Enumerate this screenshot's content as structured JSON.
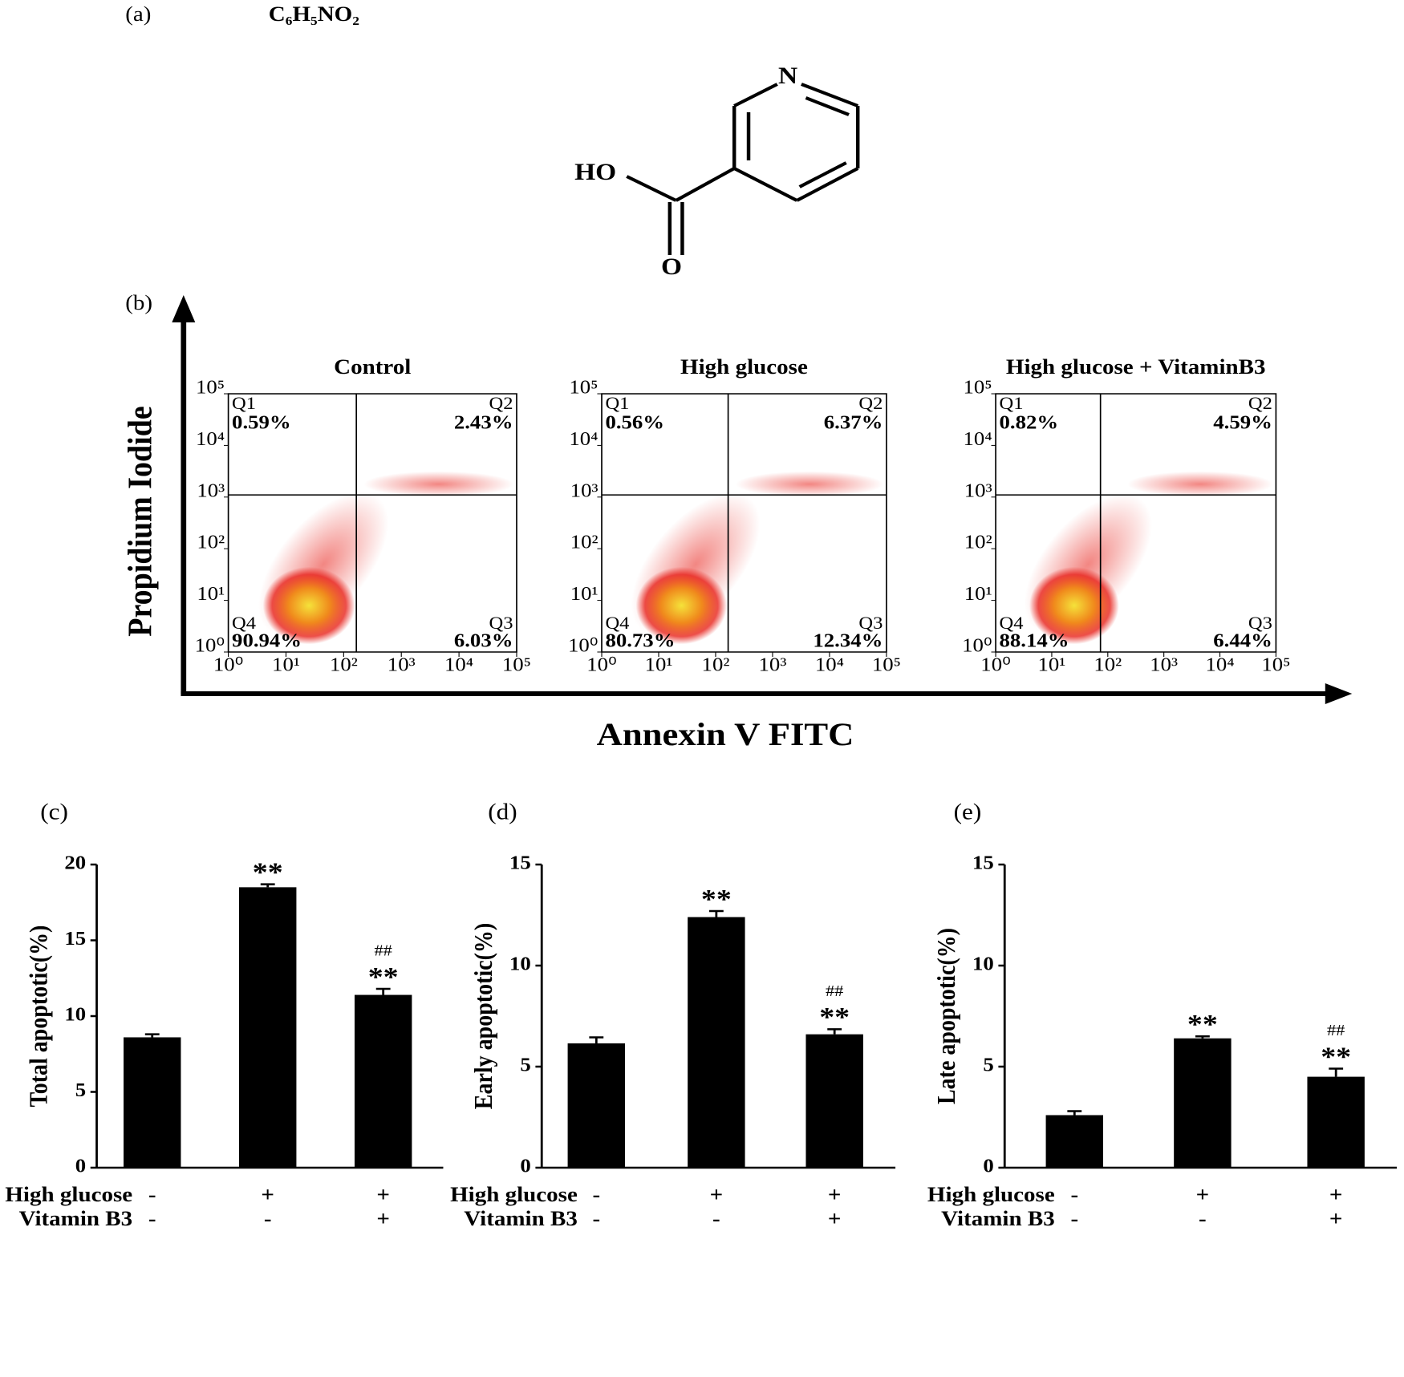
{
  "figure": {
    "panel_a": "(a)",
    "formula": "C₆H₅NO₂",
    "atom_n": "N",
    "atom_ho": "HO",
    "atom_o": "O",
    "panel_b": "(b)",
    "y_label": "Propidium Iodide",
    "x_label": "Annexin V FITC"
  },
  "chart_data": [
    {
      "type": "flow",
      "title": "Control",
      "log": true,
      "xlim": [
        1,
        100000
      ],
      "ylim": [
        1,
        100000
      ],
      "xticks": [
        {
          "value": 1,
          "label": "10⁰"
        },
        {
          "value": 10,
          "label": "10¹"
        },
        {
          "value": 100,
          "label": "10²"
        },
        {
          "value": 1000,
          "label": "10³"
        },
        {
          "value": 10000,
          "label": "10⁴"
        },
        {
          "value": 100000,
          "label": "10⁵"
        }
      ],
      "yticks": [
        {
          "value": 1,
          "label": "10⁰"
        },
        {
          "value": 10,
          "label": "10¹"
        },
        {
          "value": 100,
          "label": "10²"
        },
        {
          "value": 1000,
          "label": "10³"
        },
        {
          "value": 10000,
          "label": "10⁴"
        },
        {
          "value": 100000,
          "label": "10⁵"
        }
      ],
      "gate": {
        "x": 166,
        "y": 1100
      },
      "quadrants": [
        "Q1",
        "Q2",
        "Q3",
        "Q4"
      ],
      "values": [
        0.59,
        2.43,
        6.03,
        90.94
      ],
      "value_labels": [
        "0.59%",
        "2.43%",
        "6.03%",
        "90.94%"
      ],
      "color": "#e8231c"
    },
    {
      "type": "flow",
      "title": "High glucose",
      "log": true,
      "xlim": [
        1,
        100000
      ],
      "ylim": [
        1,
        100000
      ],
      "xticks": [
        {
          "value": 1,
          "label": "10⁰"
        },
        {
          "value": 10,
          "label": "10¹"
        },
        {
          "value": 100,
          "label": "10²"
        },
        {
          "value": 1000,
          "label": "10³"
        },
        {
          "value": 10000,
          "label": "10⁴"
        },
        {
          "value": 100000,
          "label": "10⁵"
        }
      ],
      "yticks": [
        {
          "value": 1,
          "label": "10⁰"
        },
        {
          "value": 10,
          "label": "10¹"
        },
        {
          "value": 100,
          "label": "10²"
        },
        {
          "value": 1000,
          "label": "10³"
        },
        {
          "value": 10000,
          "label": "10⁴"
        },
        {
          "value": 100000,
          "label": "10⁵"
        }
      ],
      "gate": {
        "x": 166,
        "y": 1100
      },
      "quadrants": [
        "Q1",
        "Q2",
        "Q3",
        "Q4"
      ],
      "values": [
        0.56,
        6.37,
        12.34,
        80.73
      ],
      "value_labels": [
        "0.56%",
        "6.37%",
        "12.34%",
        "80.73%"
      ],
      "color": "#e8231c"
    },
    {
      "type": "flow",
      "title": "High glucose + VitaminB3",
      "log": true,
      "xlim": [
        1,
        100000
      ],
      "ylim": [
        1,
        100000
      ],
      "xticks": [
        {
          "value": 1,
          "label": "10⁰"
        },
        {
          "value": 10,
          "label": "10¹"
        },
        {
          "value": 100,
          "label": "10²"
        },
        {
          "value": 1000,
          "label": "10³"
        },
        {
          "value": 10000,
          "label": "10⁴"
        },
        {
          "value": 100000,
          "label": "10⁵"
        }
      ],
      "yticks": [
        {
          "value": 1,
          "label": "10⁰"
        },
        {
          "value": 10,
          "label": "10¹"
        },
        {
          "value": 100,
          "label": "10²"
        },
        {
          "value": 1000,
          "label": "10³"
        },
        {
          "value": 10000,
          "label": "10⁴"
        },
        {
          "value": 100000,
          "label": "10⁵"
        }
      ],
      "gate": {
        "x": 74,
        "y": 1100
      },
      "quadrants": [
        "Q1",
        "Q2",
        "Q3",
        "Q4"
      ],
      "values": [
        0.82,
        4.59,
        6.44,
        88.14
      ],
      "value_labels": [
        "0.82%",
        "4.59%",
        "6.44%",
        "88.14%"
      ],
      "color": "#e8231c"
    },
    {
      "type": "bar",
      "panel": "(c)",
      "y_label": "Total apoptotic(%)",
      "color": "#000000",
      "values": [
        8.6,
        18.5,
        11.4
      ],
      "errors": [
        0.2,
        0.2,
        0.4
      ],
      "ylim": [
        0,
        20
      ],
      "yticks": [
        0,
        5,
        10,
        15,
        20
      ],
      "significance": [
        null,
        "**",
        "**"
      ],
      "significance_vs_high_glucose": [
        null,
        null,
        "##"
      ],
      "conditions": [
        {
          "name": "High glucose",
          "values": [
            "-",
            "+",
            "+"
          ]
        },
        {
          "name": "Vitamin B3",
          "values": [
            "-",
            "-",
            "+"
          ]
        }
      ]
    },
    {
      "type": "bar",
      "panel": "(d)",
      "y_label": "Early apoptotic(%)",
      "color": "#000000",
      "values": [
        6.15,
        12.4,
        6.6
      ],
      "errors": [
        0.3,
        0.3,
        0.25
      ],
      "ylim": [
        0,
        15
      ],
      "yticks": [
        0,
        5,
        10,
        15
      ],
      "significance": [
        null,
        "**",
        "**"
      ],
      "significance_vs_high_glucose": [
        null,
        null,
        "##"
      ],
      "conditions": [
        {
          "name": "High glucose",
          "values": [
            "-",
            "+",
            "+"
          ]
        },
        {
          "name": "Vitamin B3",
          "values": [
            "-",
            "-",
            "+"
          ]
        }
      ]
    },
    {
      "type": "bar",
      "panel": "(e)",
      "y_label": "Late apoptotic(%)",
      "color": "#000000",
      "values": [
        2.6,
        6.4,
        4.5
      ],
      "errors": [
        0.2,
        0.1,
        0.4
      ],
      "ylim": [
        0,
        15
      ],
      "yticks": [
        0,
        5,
        10,
        15
      ],
      "significance": [
        null,
        "**",
        "**"
      ],
      "significance_vs_high_glucose": [
        null,
        null,
        "##"
      ],
      "conditions": [
        {
          "name": "High glucose",
          "values": [
            "-",
            "+",
            "+"
          ]
        },
        {
          "name": "Vitamin B3",
          "values": [
            "-",
            "-",
            "+"
          ]
        }
      ]
    }
  ]
}
